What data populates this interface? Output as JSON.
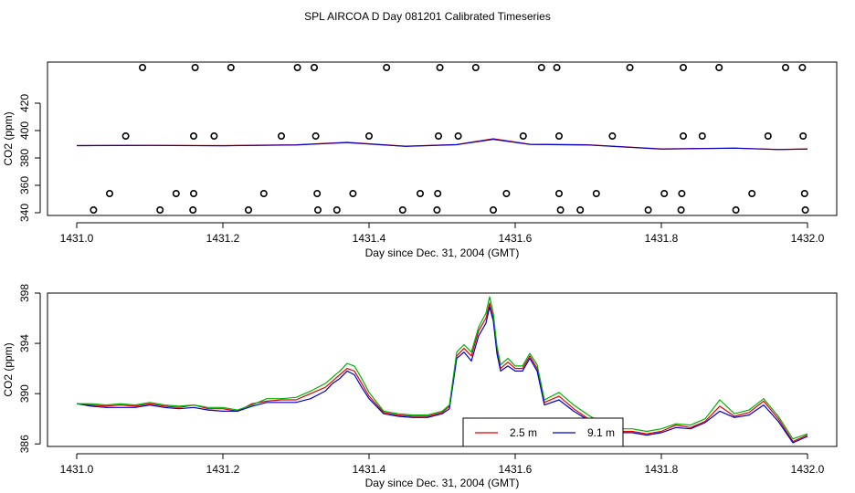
{
  "page": {
    "title": "SPL AIRCOA D  Day 081201  Calibrated Timeseries"
  },
  "chart_data": [
    {
      "type": "scatter",
      "name": "top-panel",
      "xlabel": "Day since Dec. 31, 2004 (GMT)",
      "ylabel": "CO2 (ppm)",
      "xlim": [
        1431.0,
        1432.0
      ],
      "ylim": [
        338,
        450
      ],
      "xticks": [
        1431.0,
        1431.2,
        1431.4,
        1431.6,
        1431.8,
        1432.0
      ],
      "xtick_labels": [
        "1431.0",
        "1431.2",
        "1431.4",
        "1431.6",
        "1431.8",
        "1432.0"
      ],
      "yticks": [
        340,
        360,
        380,
        400,
        420
      ],
      "ytick_labels": [
        "340",
        "360",
        "380",
        "400",
        "420"
      ],
      "point_groups": [
        {
          "y": 446,
          "x": [
            1431.09,
            1431.162,
            1431.211,
            1431.302,
            1431.325,
            1431.424,
            1431.497,
            1431.546,
            1431.636,
            1431.657,
            1431.757,
            1431.83,
            1431.879,
            1431.97,
            1431.993
          ]
        },
        {
          "y": 396,
          "x": [
            1431.067,
            1431.16,
            1431.188,
            1431.28,
            1431.327,
            1431.4,
            1431.495,
            1431.522,
            1431.611,
            1431.66,
            1431.733,
            1431.83,
            1431.856,
            1431.946,
            1431.994
          ]
        },
        {
          "y": 354,
          "x": [
            1431.045,
            1431.136,
            1431.16,
            1431.256,
            1431.329,
            1431.378,
            1431.47,
            1431.494,
            1431.588,
            1431.66,
            1431.711,
            1431.804,
            1431.828,
            1431.924,
            1431.996
          ]
        },
        {
          "y": 342,
          "x": [
            1431.023,
            1431.114,
            1431.159,
            1431.235,
            1431.33,
            1431.356,
            1431.446,
            1431.493,
            1431.57,
            1431.662,
            1431.689,
            1431.782,
            1431.827,
            1431.902,
            1431.997
          ]
        }
      ],
      "series": [
        {
          "name": "2.5 m",
          "color": "#e00000",
          "x": [
            1431.0,
            1431.1,
            1431.2,
            1431.3,
            1431.37,
            1431.45,
            1431.52,
            1431.57,
            1431.62,
            1431.7,
            1431.8,
            1431.9,
            1431.96,
            1432.0
          ],
          "values": [
            389,
            389.2,
            389.0,
            389.6,
            391.4,
            388.6,
            389.8,
            394.0,
            390.0,
            389.6,
            386.6,
            387.2,
            386.2,
            386.6
          ]
        },
        {
          "name": "9.1 m",
          "color": "#0000cc",
          "x": [
            1431.0,
            1431.1,
            1431.2,
            1431.3,
            1431.37,
            1431.45,
            1431.52,
            1431.57,
            1431.62,
            1431.7,
            1431.8,
            1431.9,
            1431.96,
            1432.0
          ],
          "values": [
            389,
            389.1,
            388.9,
            389.5,
            391.2,
            388.5,
            389.7,
            393.6,
            389.9,
            389.5,
            386.5,
            387.1,
            386.1,
            386.5
          ]
        }
      ]
    },
    {
      "type": "line",
      "name": "bottom-panel",
      "xlabel": "Day since Dec. 31, 2004 (GMT)",
      "ylabel": "CO2 (ppm)",
      "xlim": [
        1431.0,
        1432.0
      ],
      "ylim": [
        385.8,
        398.0
      ],
      "xticks": [
        1431.0,
        1431.2,
        1431.4,
        1431.6,
        1431.8,
        1432.0
      ],
      "xtick_labels": [
        "1431.0",
        "1431.2",
        "1431.4",
        "1431.6",
        "1431.8",
        "1432.0"
      ],
      "yticks": [
        386,
        390,
        394,
        398
      ],
      "ytick_labels": [
        "386",
        "390",
        "394",
        "398"
      ],
      "legend": {
        "position": "bottom-center",
        "entries": [
          "2.5 m",
          "9.1 m"
        ]
      },
      "x": [
        1431.0,
        1431.02,
        1431.04,
        1431.06,
        1431.08,
        1431.1,
        1431.12,
        1431.14,
        1431.16,
        1431.18,
        1431.2,
        1431.22,
        1431.24,
        1431.26,
        1431.28,
        1431.3,
        1431.32,
        1431.34,
        1431.35,
        1431.36,
        1431.37,
        1431.38,
        1431.39,
        1431.4,
        1431.42,
        1431.44,
        1431.46,
        1431.48,
        1431.5,
        1431.51,
        1431.52,
        1431.53,
        1431.54,
        1431.55,
        1431.56,
        1431.565,
        1431.57,
        1431.575,
        1431.58,
        1431.59,
        1431.6,
        1431.61,
        1431.62,
        1431.63,
        1431.64,
        1431.66,
        1431.68,
        1431.7,
        1431.72,
        1431.74,
        1431.76,
        1431.78,
        1431.8,
        1431.82,
        1431.84,
        1431.86,
        1431.88,
        1431.9,
        1431.92,
        1431.94,
        1431.96,
        1431.98,
        1432.0
      ],
      "series": [
        {
          "name": "2.5 m",
          "color": "#e00000",
          "values": [
            389.2,
            389.1,
            389.0,
            389.1,
            389.0,
            389.2,
            389.0,
            388.9,
            389.1,
            388.8,
            388.8,
            388.6,
            389.2,
            389.4,
            389.5,
            389.5,
            390.0,
            390.5,
            391.0,
            391.5,
            392.0,
            391.8,
            390.8,
            389.8,
            388.5,
            388.3,
            388.2,
            388.2,
            388.5,
            389.0,
            393.0,
            393.6,
            393.0,
            395.0,
            396.0,
            397.2,
            396.0,
            393.5,
            392.0,
            392.5,
            392.0,
            392.0,
            393.0,
            392.0,
            389.3,
            389.8,
            388.8,
            388.0,
            387.4,
            387.0,
            387.0,
            386.8,
            387.0,
            387.5,
            387.3,
            387.8,
            389.0,
            388.2,
            388.5,
            389.4,
            388.0,
            386.2,
            386.7
          ]
        },
        {
          "name": "9.1 m",
          "color": "#0000cc",
          "values": [
            389.2,
            389.0,
            388.9,
            388.9,
            388.9,
            389.1,
            388.9,
            388.8,
            388.9,
            388.7,
            388.6,
            388.6,
            389.0,
            389.3,
            389.3,
            389.3,
            389.6,
            390.2,
            390.8,
            391.2,
            391.8,
            391.5,
            390.5,
            389.6,
            388.4,
            388.2,
            388.1,
            388.1,
            388.4,
            388.8,
            392.8,
            393.3,
            392.6,
            394.6,
            395.6,
            396.9,
            395.8,
            393.2,
            391.8,
            392.2,
            391.8,
            391.8,
            392.8,
            391.8,
            389.1,
            389.5,
            388.6,
            387.9,
            387.3,
            386.9,
            386.9,
            386.7,
            386.9,
            387.3,
            387.2,
            387.7,
            388.6,
            388.1,
            388.3,
            389.1,
            387.8,
            386.1,
            386.6
          ]
        },
        {
          "name": "green",
          "color": "#00b000",
          "values": [
            389.2,
            389.2,
            389.1,
            389.2,
            389.1,
            389.3,
            389.1,
            389.0,
            389.1,
            388.9,
            388.9,
            388.7,
            389.1,
            389.6,
            389.6,
            389.7,
            390.2,
            390.8,
            391.3,
            391.8,
            392.4,
            392.2,
            391.2,
            390.1,
            388.6,
            388.4,
            388.3,
            388.3,
            388.6,
            389.1,
            393.3,
            393.9,
            393.3,
            395.3,
            396.4,
            397.7,
            396.4,
            393.8,
            392.3,
            392.8,
            392.2,
            392.2,
            393.2,
            392.3,
            389.5,
            390.1,
            389.1,
            388.3,
            387.6,
            387.2,
            387.2,
            387.0,
            387.2,
            387.6,
            387.5,
            388.0,
            389.5,
            388.4,
            388.7,
            389.6,
            388.2,
            386.4,
            386.8
          ]
        }
      ]
    }
  ]
}
